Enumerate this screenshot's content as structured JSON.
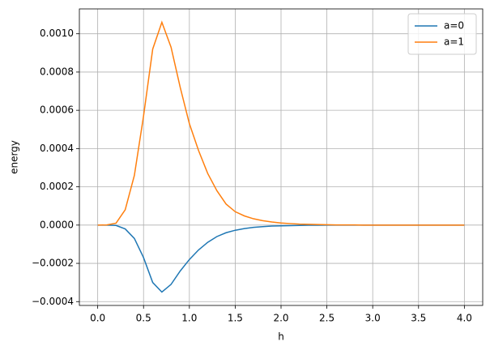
{
  "chart_data": {
    "type": "line",
    "x_label": "h",
    "y_label": "energy",
    "x": [
      0,
      0.1,
      0.2,
      0.3,
      0.4,
      0.5,
      0.6,
      0.7,
      0.8,
      0.9,
      1.0,
      1.1,
      1.2,
      1.3,
      1.4,
      1.5,
      1.6,
      1.7,
      1.8,
      1.9,
      2.0,
      2.1,
      2.2,
      2.3,
      2.4,
      2.5,
      2.6,
      2.7,
      2.8,
      2.9,
      3.0,
      3.1,
      3.2,
      3.3,
      3.4,
      3.5,
      3.6,
      3.7,
      3.8,
      3.9,
      4.0
    ],
    "series": [
      {
        "name": "a=0",
        "color": "#1f77b4",
        "values": [
          0,
          0,
          -2e-06,
          -2e-05,
          -7e-05,
          -0.00017,
          -0.0003,
          -0.00035,
          -0.00031,
          -0.00024,
          -0.00018,
          -0.00013,
          -9e-05,
          -6e-05,
          -4e-05,
          -2.7e-05,
          -1.8e-05,
          -1.2e-05,
          -8e-06,
          -5e-06,
          -4e-06,
          -3e-06,
          -2e-06,
          -1e-06,
          -1e-06,
          0,
          0,
          0,
          0,
          0,
          0,
          0,
          0,
          0,
          0,
          0,
          0,
          0,
          0,
          0,
          0
        ]
      },
      {
        "name": "a=1",
        "color": "#ff7f0e",
        "values": [
          0,
          1e-06,
          1e-05,
          8e-05,
          0.00026,
          0.00057,
          0.00092,
          0.00106,
          0.00093,
          0.00072,
          0.00053,
          0.00039,
          0.00027,
          0.00018,
          0.00011,
          7e-05,
          4.8e-05,
          3.3e-05,
          2.3e-05,
          1.6e-05,
          1.1e-05,
          8e-06,
          5e-06,
          4e-06,
          3e-06,
          2e-06,
          1e-06,
          1e-06,
          1e-06,
          0,
          0,
          0,
          0,
          0,
          0,
          0,
          0,
          0,
          0,
          0,
          0
        ]
      }
    ],
    "xlim": [
      -0.2,
      4.2
    ],
    "ylim": [
      -0.00042,
      0.00113
    ],
    "xticks": [
      {
        "value": 0,
        "label": "0.0"
      },
      0.5,
      {
        "value": 1,
        "label": "1.0"
      },
      1.5,
      {
        "value": 2,
        "label": "2.0"
      },
      2.5,
      {
        "value": 3,
        "label": "3.0"
      },
      3.5,
      {
        "value": 4,
        "label": "4.0"
      }
    ],
    "yticks": [
      {
        "value": -0.0004,
        "label": "−0.0004"
      },
      {
        "value": -0.0002,
        "label": "−0.0002"
      },
      {
        "value": 0,
        "label": "0.0000"
      },
      {
        "value": 0.0002,
        "label": "0.0002"
      },
      {
        "value": 0.0004,
        "label": "0.0004"
      },
      {
        "value": 0.0006,
        "label": "0.0006"
      },
      {
        "value": 0.0008,
        "label": "0.0008"
      },
      {
        "value": 0.001,
        "label": "0.0010"
      }
    ],
    "grid": true,
    "legend": "upper-right"
  }
}
